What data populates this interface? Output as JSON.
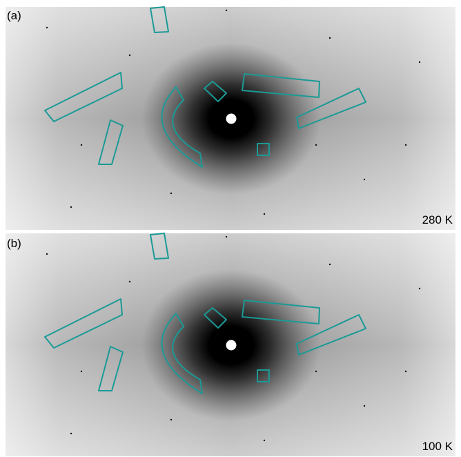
{
  "panels": [
    {
      "label": "(a)",
      "temperature": "280 K"
    },
    {
      "label": "(b)",
      "temperature": "100 K"
    }
  ]
}
